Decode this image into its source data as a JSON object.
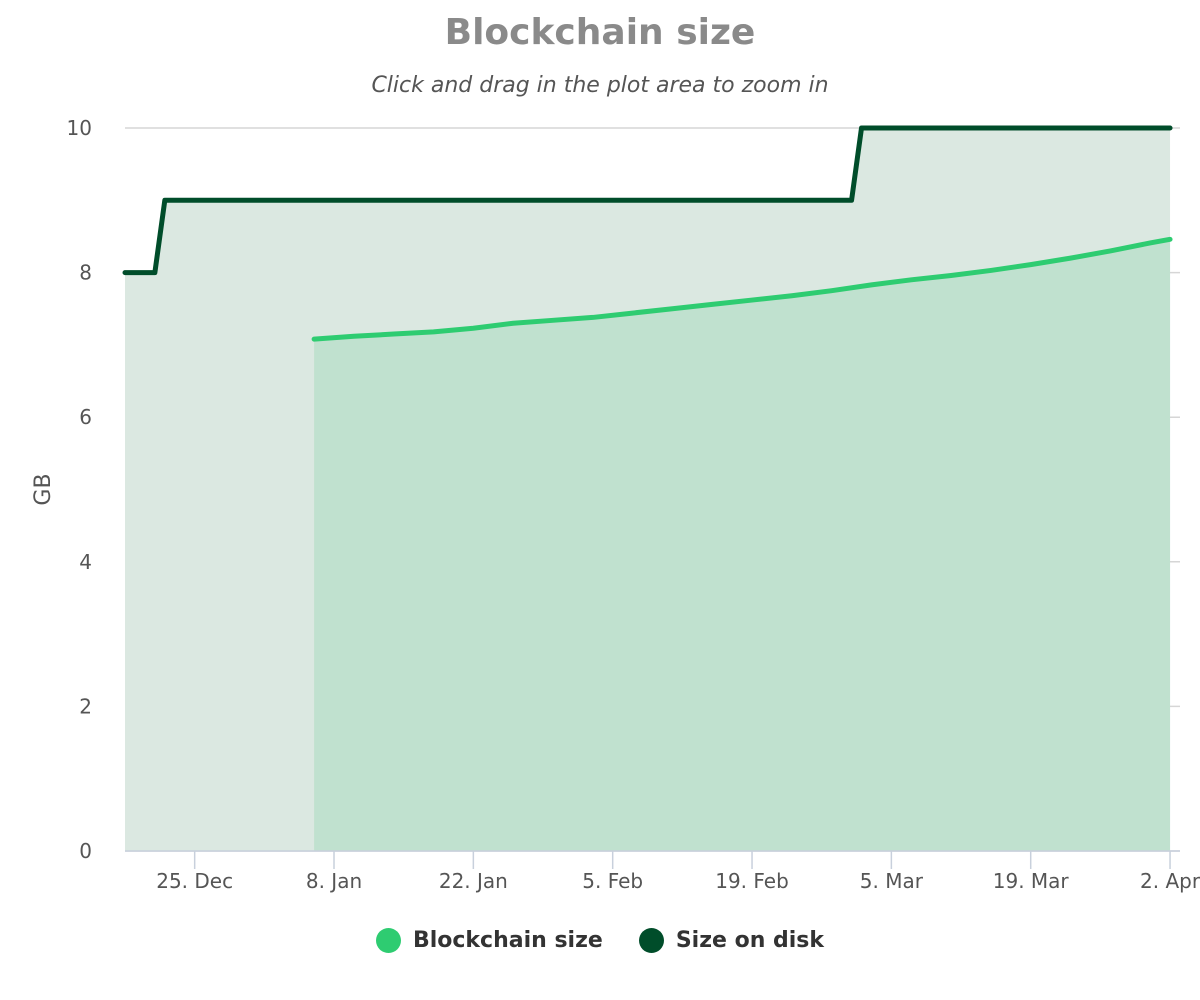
{
  "chart_data": {
    "type": "area",
    "title": "Blockchain size",
    "subtitle": "Click and drag in the plot area to zoom in",
    "ylabel": "GB",
    "ylim": [
      0,
      10
    ],
    "y_ticks": [
      0,
      2,
      4,
      6,
      8,
      10
    ],
    "x_ticks": [
      "25. Dec",
      "8. Jan",
      "22. Jan",
      "5. Feb",
      "19. Feb",
      "5. Mar",
      "19. Mar",
      "2. Apr"
    ],
    "x_range": [
      "2017-12-18",
      "2018-04-03"
    ],
    "grid": true,
    "legend_position": "bottom",
    "series": [
      {
        "name": "Blockchain size",
        "color": "#2ecc71",
        "fill": "#c0e1cf",
        "x": [
          "2018-01-06",
          "2018-01-10",
          "2018-01-14",
          "2018-01-18",
          "2018-01-22",
          "2018-01-26",
          "2018-01-30",
          "2018-02-03",
          "2018-02-07",
          "2018-02-11",
          "2018-02-15",
          "2018-02-19",
          "2018-02-23",
          "2018-02-27",
          "2018-03-03",
          "2018-03-07",
          "2018-03-11",
          "2018-03-15",
          "2018-03-19",
          "2018-03-23",
          "2018-03-27",
          "2018-03-31",
          "2018-04-02"
        ],
        "values": [
          7.08,
          7.12,
          7.15,
          7.18,
          7.23,
          7.3,
          7.34,
          7.38,
          7.44,
          7.5,
          7.56,
          7.62,
          7.68,
          7.75,
          7.83,
          7.9,
          7.96,
          8.03,
          8.11,
          8.2,
          8.3,
          8.41,
          8.46
        ]
      },
      {
        "name": "Size on disk",
        "color": "#004d2a",
        "fill": "#dbe8e1",
        "step": true,
        "x": [
          "2017-12-18",
          "2017-12-21",
          "2017-12-22",
          "2018-03-01",
          "2018-03-02",
          "2018-04-02"
        ],
        "values": [
          8,
          8,
          9,
          9,
          10,
          10
        ]
      }
    ]
  }
}
